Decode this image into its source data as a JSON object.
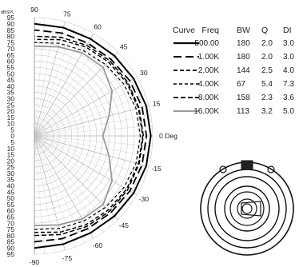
{
  "chart_data": {
    "type": "polar",
    "ylabel": "dBSPL",
    "r_ticks": [
      "95",
      "90",
      "85",
      "80",
      "75",
      "70",
      "65",
      "60",
      "55",
      "50",
      "45",
      "40",
      "35",
      "30",
      "25",
      "20",
      "15",
      "10",
      "5",
      "0",
      "5",
      "10",
      "15",
      "20",
      "25",
      "30",
      "35",
      "40",
      "45",
      "50",
      "55",
      "60",
      "65",
      "70",
      "75",
      "80",
      "85",
      "90",
      "95"
    ],
    "angle_ticks": [
      "90",
      "75",
      "60",
      "45",
      "30",
      "15",
      "0 Deg",
      "-15",
      "-30",
      "-45",
      "-60",
      "-75",
      "-90"
    ],
    "r_range": [
      0,
      95
    ],
    "angle_range": [
      -90,
      90
    ],
    "legend_columns": [
      "Curve",
      "Freq",
      "BW",
      "Q",
      "DI"
    ],
    "series": [
      {
        "freq": "500.00",
        "bw": "180",
        "q": "2.0",
        "di": "3.0",
        "color": "#000000",
        "dash": "none",
        "width": 2.0,
        "angles": [
          -90,
          -75,
          -60,
          -45,
          -30,
          -15,
          0,
          15,
          30,
          45,
          60,
          75,
          90
        ],
        "values": [
          90.0,
          90.0,
          90.0,
          91.0,
          92.0,
          93.0,
          93.5,
          93.0,
          92.0,
          91.0,
          90.0,
          90.0,
          90.0
        ]
      },
      {
        "freq": "1.00K",
        "bw": "180",
        "q": "2.0",
        "di": "3.0",
        "color": "#000000",
        "dash": "10,5",
        "width": 1.8,
        "angles": [
          -90,
          -75,
          -60,
          -45,
          -30,
          -15,
          0,
          15,
          30,
          45,
          60,
          75,
          90
        ],
        "values": [
          85.0,
          85.5,
          86.0,
          87.0,
          88.5,
          89.5,
          90.0,
          89.5,
          88.5,
          87.0,
          86.0,
          85.5,
          85.0
        ]
      },
      {
        "freq": "2.00K",
        "bw": "144",
        "q": "2.5",
        "di": "4.0",
        "color": "#000000",
        "dash": "5,3",
        "width": 1.5,
        "angles": [
          -90,
          -75,
          -60,
          -45,
          -30,
          -15,
          0,
          15,
          30,
          45,
          60,
          75,
          90
        ],
        "values": [
          77.5,
          80.0,
          82.5,
          84.0,
          85.5,
          86.5,
          87.0,
          86.5,
          85.5,
          84.0,
          82.5,
          80.0,
          77.5
        ]
      },
      {
        "freq": "4.00K",
        "bw": "67",
        "q": "5.4",
        "di": "7.3",
        "color": "#000000",
        "dash": "4,3",
        "width": 1.2,
        "angles": [
          -90,
          -75,
          -60,
          -45,
          -30,
          -15,
          0,
          15,
          30,
          45,
          60,
          75,
          90
        ],
        "values": [
          75.0,
          77.0,
          79.0,
          81.0,
          83.0,
          84.5,
          85.0,
          84.5,
          83.0,
          81.0,
          79.0,
          77.0,
          75.0
        ]
      },
      {
        "freq": "8.00K",
        "bw": "158",
        "q": "2.3",
        "di": "3.6",
        "color": "#000000",
        "dash": "6,3",
        "width": 1.5,
        "angles": [
          -90,
          -75,
          -60,
          -45,
          -30,
          -15,
          0,
          15,
          30,
          45,
          60,
          75,
          90
        ],
        "values": [
          80.0,
          82.0,
          84.0,
          85.5,
          86.5,
          87.0,
          87.5,
          87.0,
          86.5,
          85.5,
          84.0,
          82.0,
          80.0
        ]
      },
      {
        "freq": "16.00K",
        "bw": "113",
        "q": "3.2",
        "di": "5.0",
        "color": "#999999",
        "dash": "none",
        "width": 1.8,
        "angles": [
          -90,
          -75,
          -60,
          -45,
          -30,
          -15,
          0,
          15,
          30,
          45,
          60,
          75,
          90
        ],
        "values": [
          72.0,
          74.0,
          77.0,
          78.0,
          72.0,
          62.0,
          55.0,
          62.0,
          72.0,
          78.0,
          77.0,
          74.0,
          72.0
        ]
      }
    ],
    "grid": true
  }
}
